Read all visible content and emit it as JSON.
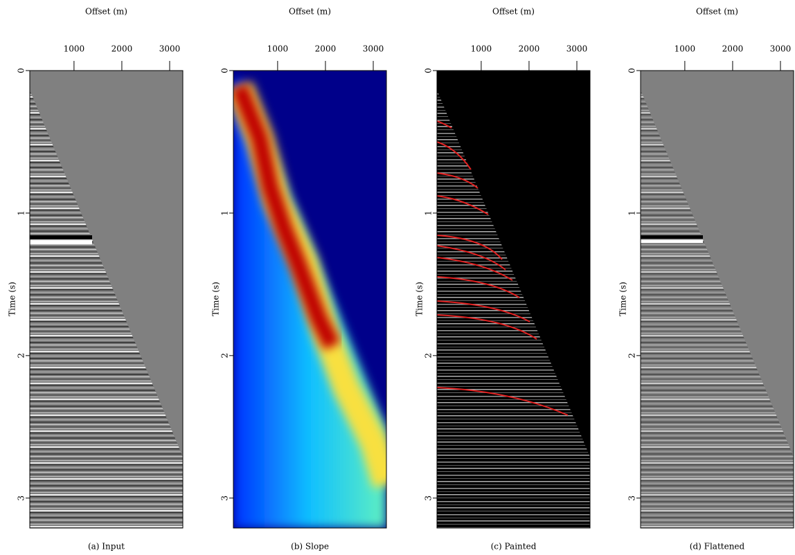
{
  "chart_data": [
    {
      "type": "image",
      "caption": "(a) Input",
      "xlabel": "Offset (m)",
      "ylabel": "Time (s)",
      "xlim": [
        75,
        3275
      ],
      "ylim": [
        0,
        3.21
      ],
      "xticks": [
        1000,
        2000,
        3000
      ],
      "yticks": [
        0,
        1,
        2,
        3
      ]
    },
    {
      "type": "image",
      "caption": "(b) Slope",
      "xlabel": "Offset (m)",
      "ylabel": "Time (s)",
      "xlim": [
        75,
        3275
      ],
      "ylim": [
        0,
        3.21
      ],
      "xticks": [
        1000,
        2000,
        3000
      ],
      "yticks": [
        0,
        1,
        2,
        3
      ]
    },
    {
      "type": "image",
      "caption": "(c) Painted",
      "xlabel": "Offset (m)",
      "ylabel": "Time (s)",
      "xlim": [
        75,
        3275
      ],
      "ylim": [
        0,
        3.21
      ],
      "xticks": [
        1000,
        2000,
        3000
      ],
      "yticks": [
        0,
        1,
        2,
        3
      ]
    },
    {
      "type": "image",
      "caption": "(d) Flattened",
      "xlabel": "Offset (m)",
      "ylabel": "Time (s)",
      "xlim": [
        75,
        3275
      ],
      "ylim": [
        0,
        3.21
      ],
      "xticks": [
        1000,
        2000,
        3000
      ],
      "yticks": [
        0,
        1,
        2,
        3
      ]
    }
  ]
}
